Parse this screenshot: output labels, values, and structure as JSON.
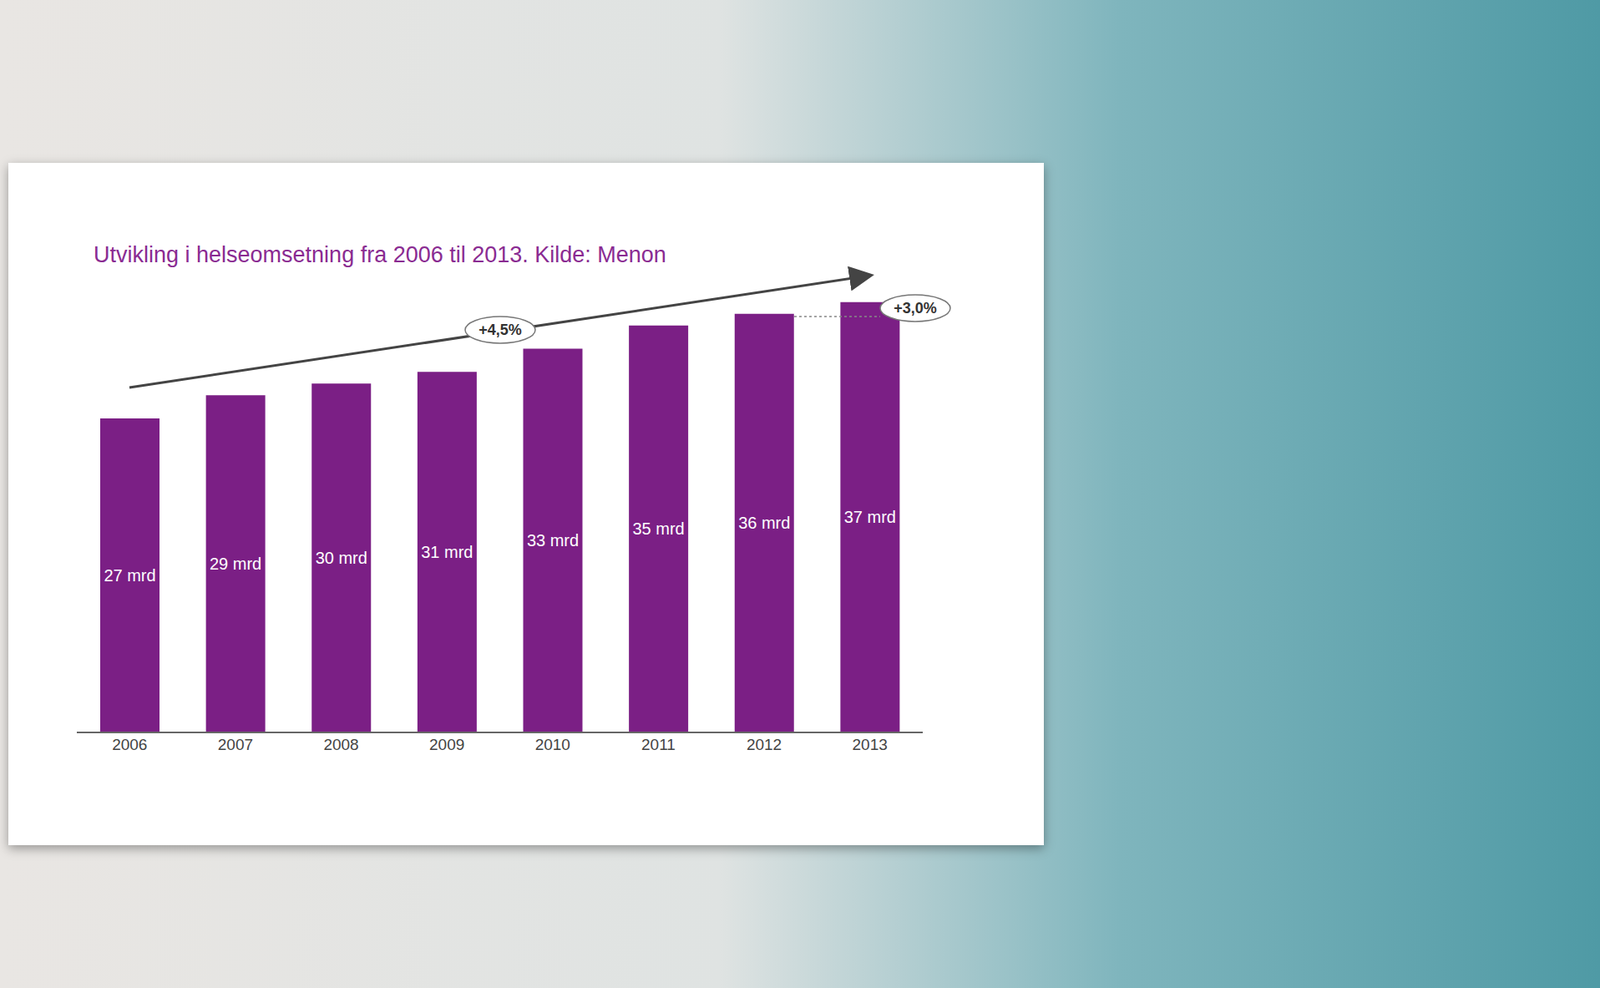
{
  "chart_data": {
    "type": "bar",
    "title": "Utvikling i helseomsetning fra 2006 til 2013. Kilde: Menon",
    "categories": [
      "2006",
      "2007",
      "2008",
      "2009",
      "2010",
      "2011",
      "2012",
      "2013"
    ],
    "values": [
      27,
      29,
      30,
      31,
      33,
      35,
      36,
      37
    ],
    "value_labels": [
      "27 mrd",
      "29 mrd",
      "30 mrd",
      "31 mrd",
      "33 mrd",
      "35 mrd",
      "36 mrd",
      "37 mrd"
    ],
    "color": "#7b1f85",
    "ylim": [
      0,
      40
    ],
    "data_labels": true,
    "tick_labels": "x",
    "annotations": [
      "+4,5%",
      "+3,0%"
    ]
  }
}
